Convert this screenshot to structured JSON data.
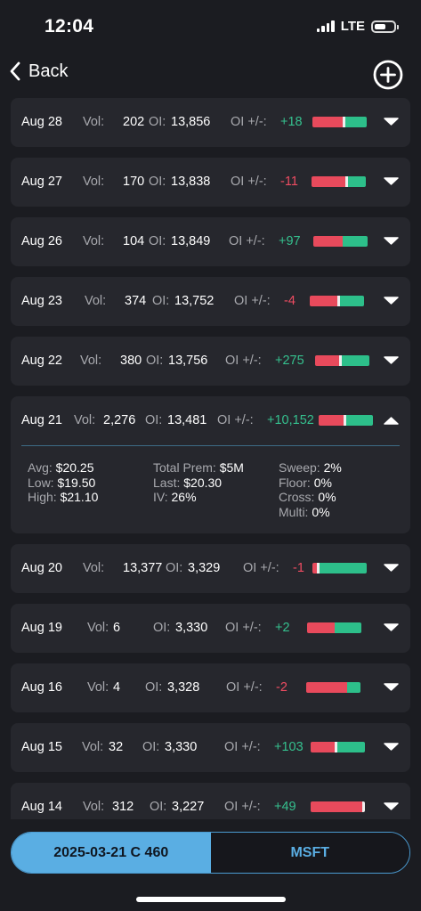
{
  "status_bar": {
    "time": "12:04",
    "network": "LTE",
    "battery_level": 0.6
  },
  "nav": {
    "back_label": "Back"
  },
  "labels": {
    "vol": "Vol:",
    "oi": "OI:",
    "oi_change": "OI +/-:"
  },
  "rows": [
    {
      "date": "Aug 28",
      "vol": "202",
      "oi": "13,856",
      "change": "+18",
      "sign": "pos",
      "bar_red_fraction": 0.56,
      "has_marker": true,
      "expanded": false
    },
    {
      "date": "Aug 27",
      "vol": "170",
      "oi": "13,838",
      "change": "-11",
      "sign": "neg",
      "bar_red_fraction": 0.63,
      "has_marker": true,
      "expanded": false
    },
    {
      "date": "Aug 26",
      "vol": "104",
      "oi": "13,849",
      "change": "+97",
      "sign": "pos",
      "bar_red_fraction": 0.54,
      "has_marker": false,
      "expanded": false
    },
    {
      "date": "Aug 23",
      "vol": "374",
      "oi": "13,752",
      "change": "-4",
      "sign": "neg",
      "bar_red_fraction": 0.5,
      "has_marker": true,
      "expanded": false
    },
    {
      "date": "Aug 22",
      "vol": "380",
      "oi": "13,756",
      "change": "+275",
      "sign": "pos",
      "bar_red_fraction": 0.44,
      "has_marker": true,
      "expanded": false
    },
    {
      "date": "Aug 21",
      "vol": "2,276",
      "oi": "13,481",
      "change": "+10,152",
      "sign": "pos",
      "bar_red_fraction": 0.46,
      "has_marker": true,
      "expanded": true,
      "details": {
        "avg_label": "Avg:",
        "avg": "$20.25",
        "low_label": "Low:",
        "low": "$19.50",
        "high_label": "High:",
        "high": "$21.10",
        "total_prem_label": "Total Prem:",
        "total_prem": "$5M",
        "last_label": "Last:",
        "last": "$20.30",
        "iv_label": "IV:",
        "iv": "26%",
        "sweep_label": "Sweep:",
        "sweep": "2%",
        "floor_label": "Floor:",
        "floor": "0%",
        "cross_label": "Cross:",
        "cross": "0%",
        "multi_label": "Multi:",
        "multi": "0%"
      }
    },
    {
      "date": "Aug 20",
      "vol": "13,377",
      "oi": "3,329",
      "change": "-1",
      "sign": "neg",
      "bar_red_fraction": 0.08,
      "has_marker": true,
      "expanded": false
    },
    {
      "date": "Aug 19",
      "vol": "6",
      "oi": "3,330",
      "change": "+2",
      "sign": "pos",
      "bar_red_fraction": 0.5,
      "has_marker": false,
      "expanded": false
    },
    {
      "date": "Aug 16",
      "vol": "4",
      "oi": "3,328",
      "change": "-2",
      "sign": "neg",
      "bar_red_fraction": 0.75,
      "has_marker": false,
      "expanded": false
    },
    {
      "date": "Aug 15",
      "vol": "32",
      "oi": "3,330",
      "change": "+103",
      "sign": "pos",
      "bar_red_fraction": 0.44,
      "has_marker": true,
      "expanded": false
    },
    {
      "date": "Aug 14",
      "vol": "312",
      "oi": "3,227",
      "change": "+49",
      "sign": "pos",
      "bar_red_fraction": 0.95,
      "has_marker": true,
      "expanded": false
    }
  ],
  "bottom_tabs": {
    "contract": "2025-03-21 C 460",
    "ticker": "MSFT"
  },
  "colors": {
    "positive": "#35c08e",
    "negative": "#ef4c62",
    "bar_red": "#e84a5c",
    "bar_green": "#2dbf8a",
    "accent": "#5aaee3",
    "card": "#26272d",
    "background": "#1b1c21"
  },
  "icons": {
    "back": "chevron-left-icon",
    "add": "plus-circle-icon",
    "expand": "chevron-down-icon",
    "collapse": "chevron-up-icon"
  }
}
